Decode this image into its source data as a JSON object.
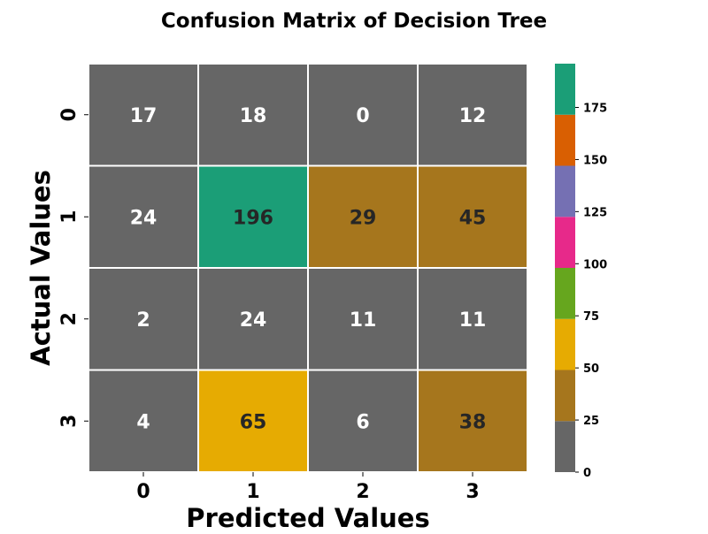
{
  "chart_data": {
    "type": "heatmap",
    "title": "Confusion Matrix of Decision Tree",
    "xlabel": "Predicted Values",
    "ylabel": "Actual Values",
    "x_categories": [
      "0",
      "1",
      "2",
      "3"
    ],
    "y_categories": [
      "0",
      "1",
      "2",
      "3"
    ],
    "values": [
      [
        17,
        18,
        0,
        12
      ],
      [
        24,
        196,
        29,
        45
      ],
      [
        2,
        24,
        11,
        11
      ],
      [
        4,
        65,
        6,
        38
      ]
    ],
    "colormap": "Dark2_r",
    "vmin": 0,
    "vmax": 196,
    "colorbar_ticks": [
      0,
      25,
      50,
      75,
      100,
      125,
      150,
      175
    ],
    "colorbar_bins": [
      {
        "from": 0,
        "to": 24.5,
        "color": "#666666"
      },
      {
        "from": 24.5,
        "to": 49,
        "color": "#a6761d"
      },
      {
        "from": 49,
        "to": 73.5,
        "color": "#e6ab02"
      },
      {
        "from": 73.5,
        "to": 98,
        "color": "#66a61e"
      },
      {
        "from": 98,
        "to": 122.5,
        "color": "#e7298a"
      },
      {
        "from": 122.5,
        "to": 147,
        "color": "#7570b3"
      },
      {
        "from": 147,
        "to": 171.5,
        "color": "#d95f02"
      },
      {
        "from": 171.5,
        "to": 196,
        "color": "#1b9e77"
      }
    ],
    "annotation_colors": {
      "light": "#ffffff",
      "dark": "#262626"
    },
    "grid_line_color": "#ffffff"
  }
}
